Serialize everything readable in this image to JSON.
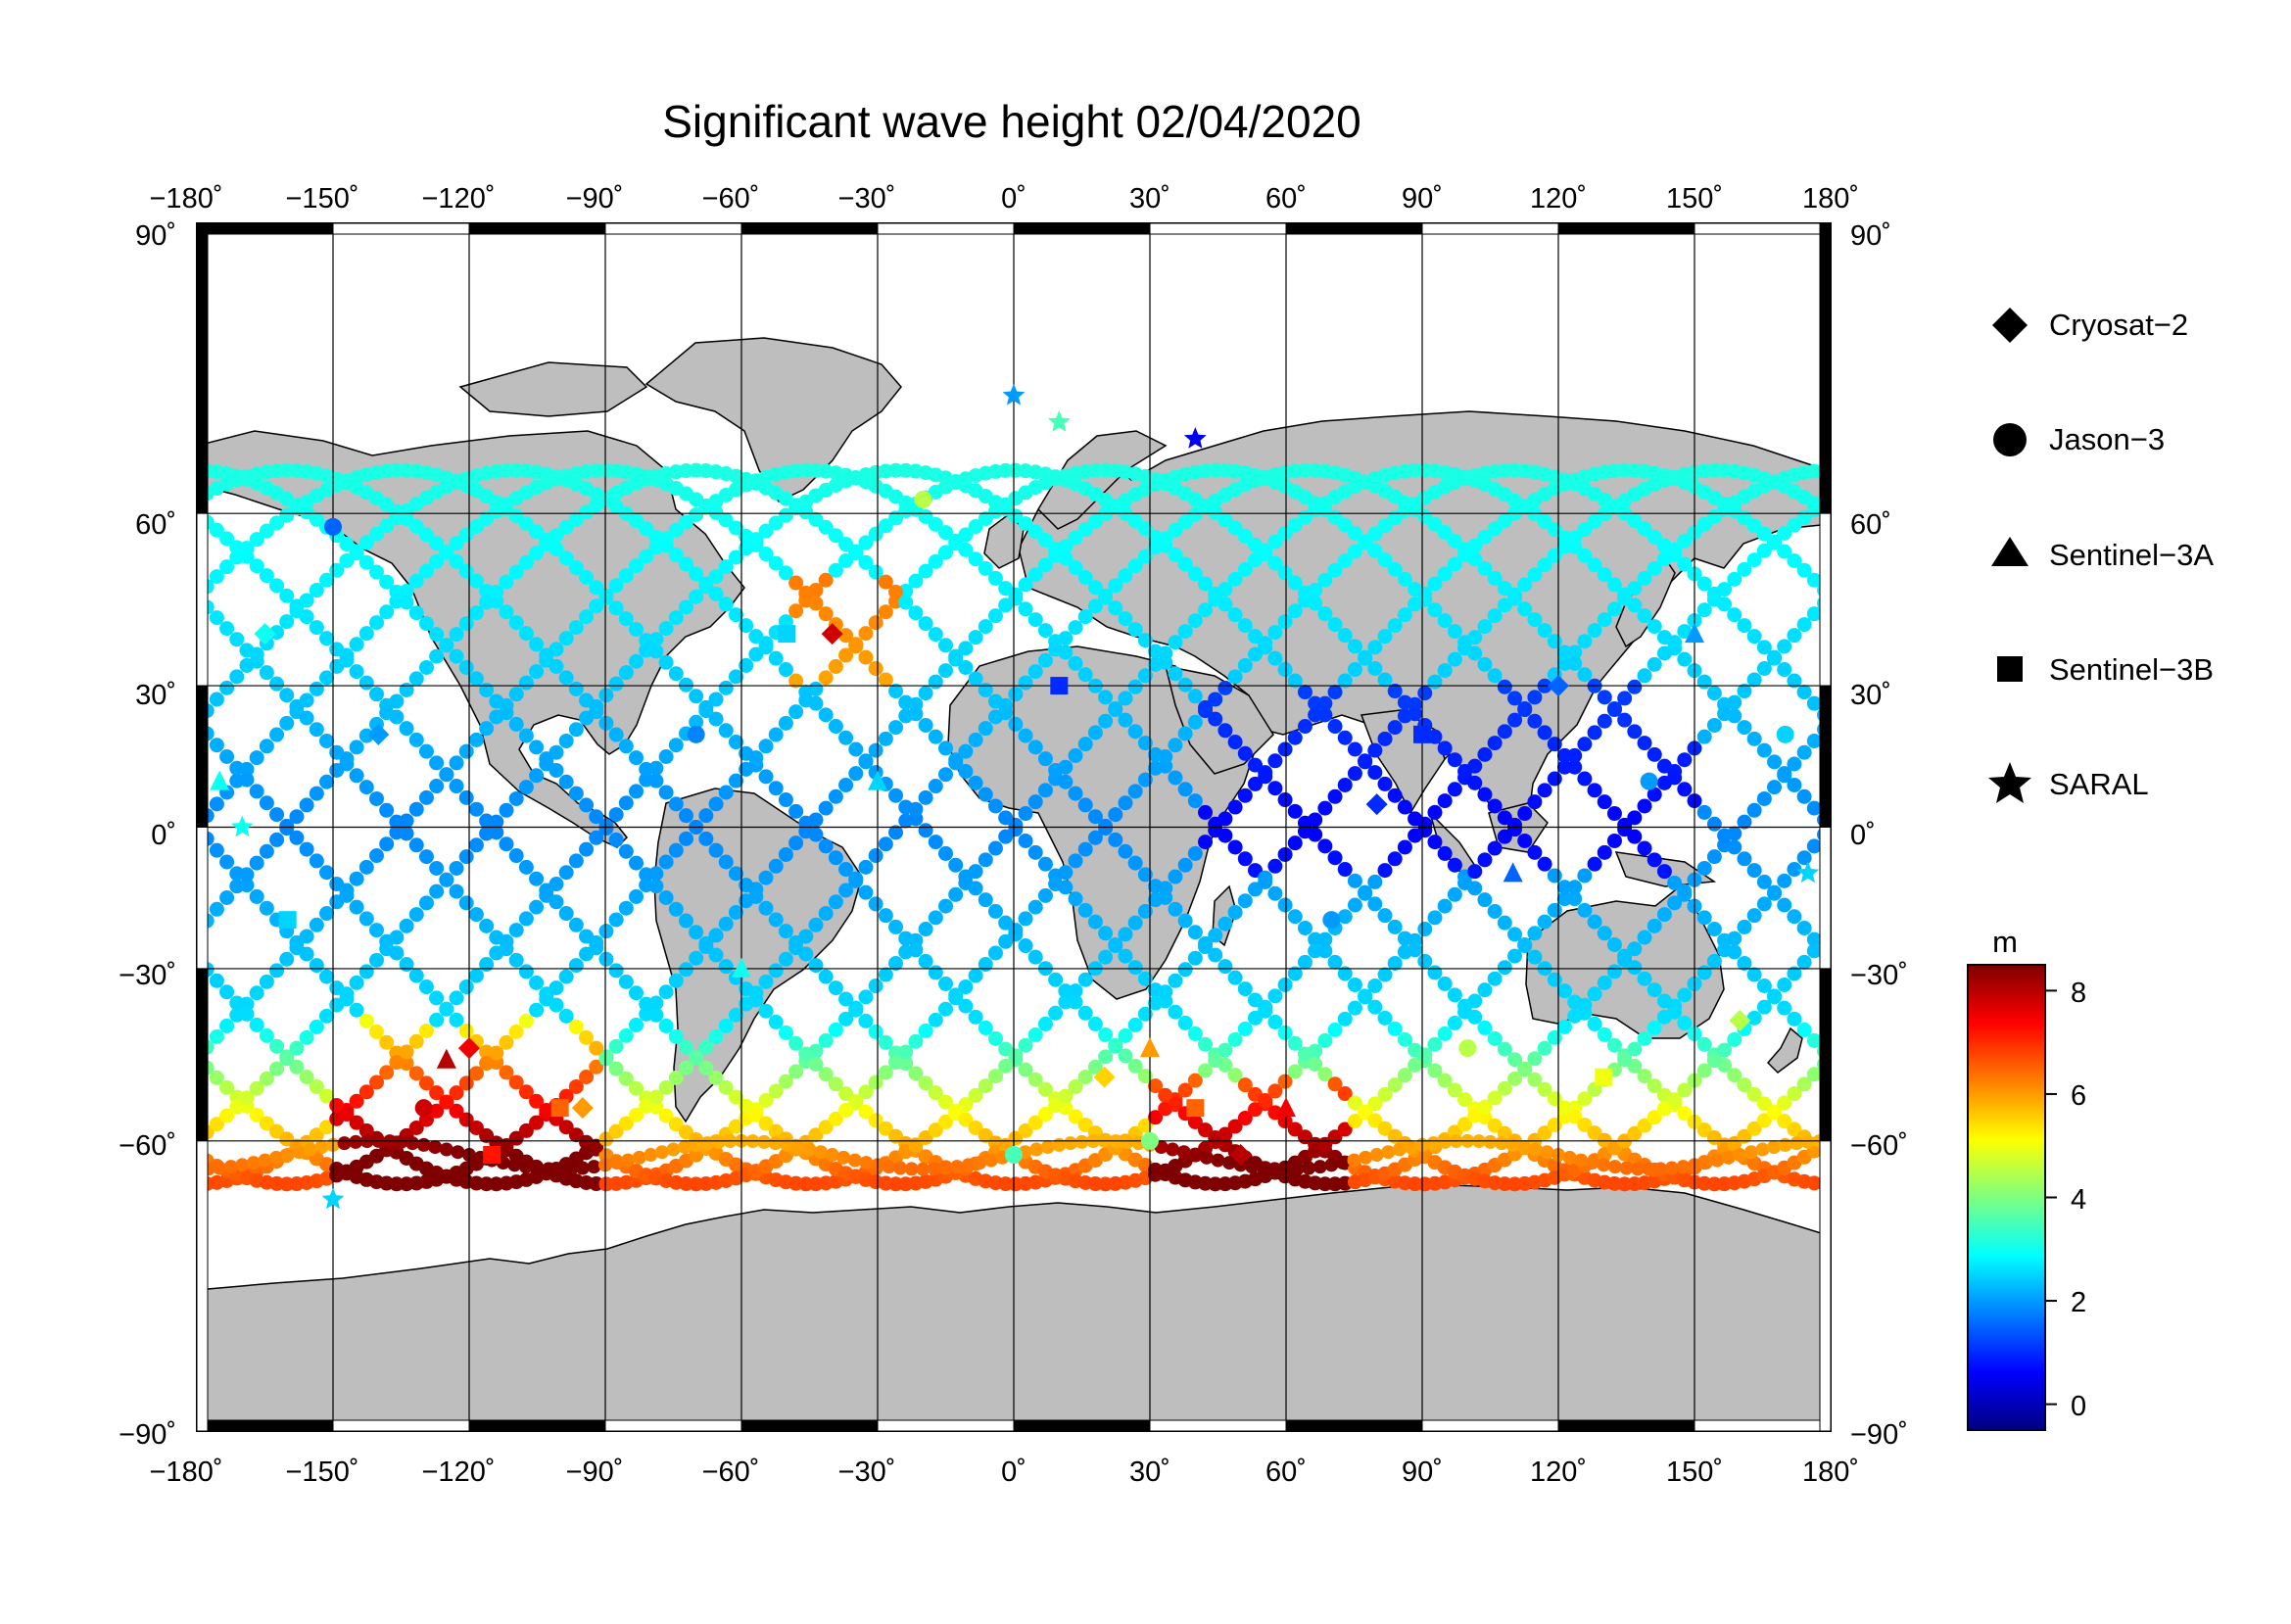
{
  "title": "Significant wave height 02/04/2020",
  "x_ticks": [
    "−180˚",
    "−150˚",
    "−120˚",
    "−90˚",
    "−60˚",
    "−30˚",
    "0˚",
    "30˚",
    "60˚",
    "90˚",
    "120˚",
    "150˚",
    "180˚"
  ],
  "y_ticks": [
    "90˚",
    "60˚",
    "30˚",
    "0˚",
    "−30˚",
    "−60˚",
    "−90˚"
  ],
  "legend": [
    {
      "label": "Cryosat−2",
      "marker": "diamond"
    },
    {
      "label": "Jason−3",
      "marker": "circle"
    },
    {
      "label": "Sentinel−3A",
      "marker": "triangle"
    },
    {
      "label": "Sentinel−3B",
      "marker": "square"
    },
    {
      "label": "SARAL",
      "marker": "star"
    }
  ],
  "colorbar": {
    "unit": "m",
    "ticks": [
      "8",
      "6",
      "4",
      "2",
      "0"
    ],
    "range": [
      -0.5,
      8.5
    ],
    "colors": [
      "#00007f",
      "#0000ff",
      "#007fff",
      "#00ffff",
      "#7fff7f",
      "#ffff00",
      "#ff7f00",
      "#ff0000",
      "#7f0000"
    ]
  },
  "chart_data": {
    "type": "scatter",
    "title": "Significant wave height 02/04/2020",
    "xlabel": "",
    "ylabel": "",
    "xlim": [
      -180,
      180
    ],
    "ylim": [
      -90,
      90
    ],
    "x_tick_values": [
      -180,
      -150,
      -120,
      -90,
      -60,
      -30,
      0,
      30,
      60,
      90,
      120,
      150,
      180
    ],
    "y_tick_values": [
      90,
      60,
      30,
      0,
      -30,
      -60,
      -90
    ],
    "colorbar_unit": "m",
    "colorbar_range": [
      -0.5,
      8.5
    ],
    "series": [
      {
        "name": "Cryosat−2",
        "marker": "diamond",
        "points": [
          {
            "lon": -165,
            "lat": 40,
            "h": 3.0
          },
          {
            "lon": -140,
            "lat": 20,
            "h": 2.0
          },
          {
            "lon": -120,
            "lat": -45,
            "h": 7.5
          },
          {
            "lon": -95,
            "lat": -55,
            "h": 6.0
          },
          {
            "lon": -40,
            "lat": 40,
            "h": 7.8
          },
          {
            "lon": 20,
            "lat": -50,
            "h": 5.5
          },
          {
            "lon": 50,
            "lat": -62,
            "h": 8.0
          },
          {
            "lon": 80,
            "lat": 5,
            "h": 1.0
          },
          {
            "lon": 120,
            "lat": 30,
            "h": 1.5
          },
          {
            "lon": 160,
            "lat": -40,
            "h": 4.5
          }
        ]
      },
      {
        "name": "Jason−3",
        "marker": "circle",
        "points": [
          {
            "lon": -150,
            "lat": 58,
            "h": 1.5
          },
          {
            "lon": -130,
            "lat": -55,
            "h": 7.8
          },
          {
            "lon": -70,
            "lat": 20,
            "h": 1.8
          },
          {
            "lon": -20,
            "lat": 62,
            "h": 4.5
          },
          {
            "lon": 0,
            "lat": -62,
            "h": 3.5
          },
          {
            "lon": 30,
            "lat": -60,
            "h": 4.0
          },
          {
            "lon": 70,
            "lat": -20,
            "h": 2.0
          },
          {
            "lon": 100,
            "lat": -45,
            "h": 4.5
          },
          {
            "lon": 140,
            "lat": 10,
            "h": 2.0
          },
          {
            "lon": 170,
            "lat": 20,
            "h": 2.5
          }
        ]
      },
      {
        "name": "Sentinel−3A",
        "marker": "triangle",
        "points": [
          {
            "lon": -175,
            "lat": 10,
            "h": 3.0
          },
          {
            "lon": -125,
            "lat": -47,
            "h": 8.0
          },
          {
            "lon": -60,
            "lat": -30,
            "h": 3.0
          },
          {
            "lon": -30,
            "lat": 10,
            "h": 2.5
          },
          {
            "lon": 30,
            "lat": -45,
            "h": 6.0
          },
          {
            "lon": 60,
            "lat": -55,
            "h": 7.5
          },
          {
            "lon": 110,
            "lat": -10,
            "h": 1.5
          },
          {
            "lon": 150,
            "lat": 40,
            "h": 2.0
          }
        ]
      },
      {
        "name": "Sentinel−3B",
        "marker": "square",
        "points": [
          {
            "lon": -160,
            "lat": -20,
            "h": 2.5
          },
          {
            "lon": -115,
            "lat": -62,
            "h": 7.2
          },
          {
            "lon": -100,
            "lat": -55,
            "h": 6.5
          },
          {
            "lon": -50,
            "lat": 40,
            "h": 2.5
          },
          {
            "lon": 10,
            "lat": 30,
            "h": 1.0
          },
          {
            "lon": 40,
            "lat": -55,
            "h": 6.5
          },
          {
            "lon": 90,
            "lat": 20,
            "h": 1.0
          },
          {
            "lon": 130,
            "lat": -50,
            "h": 5.0
          }
        ]
      },
      {
        "name": "SARAL",
        "marker": "star",
        "points": [
          {
            "lon": 0,
            "lat": 75,
            "h": 2.0
          },
          {
            "lon": 10,
            "lat": 72,
            "h": 3.5
          },
          {
            "lon": 40,
            "lat": 70,
            "h": 0.5
          },
          {
            "lon": -150,
            "lat": -68,
            "h": 2.5
          },
          {
            "lon": -170,
            "lat": 0,
            "h": 3.0
          },
          {
            "lon": 175,
            "lat": -10,
            "h": 2.5
          }
        ]
      }
    ]
  }
}
